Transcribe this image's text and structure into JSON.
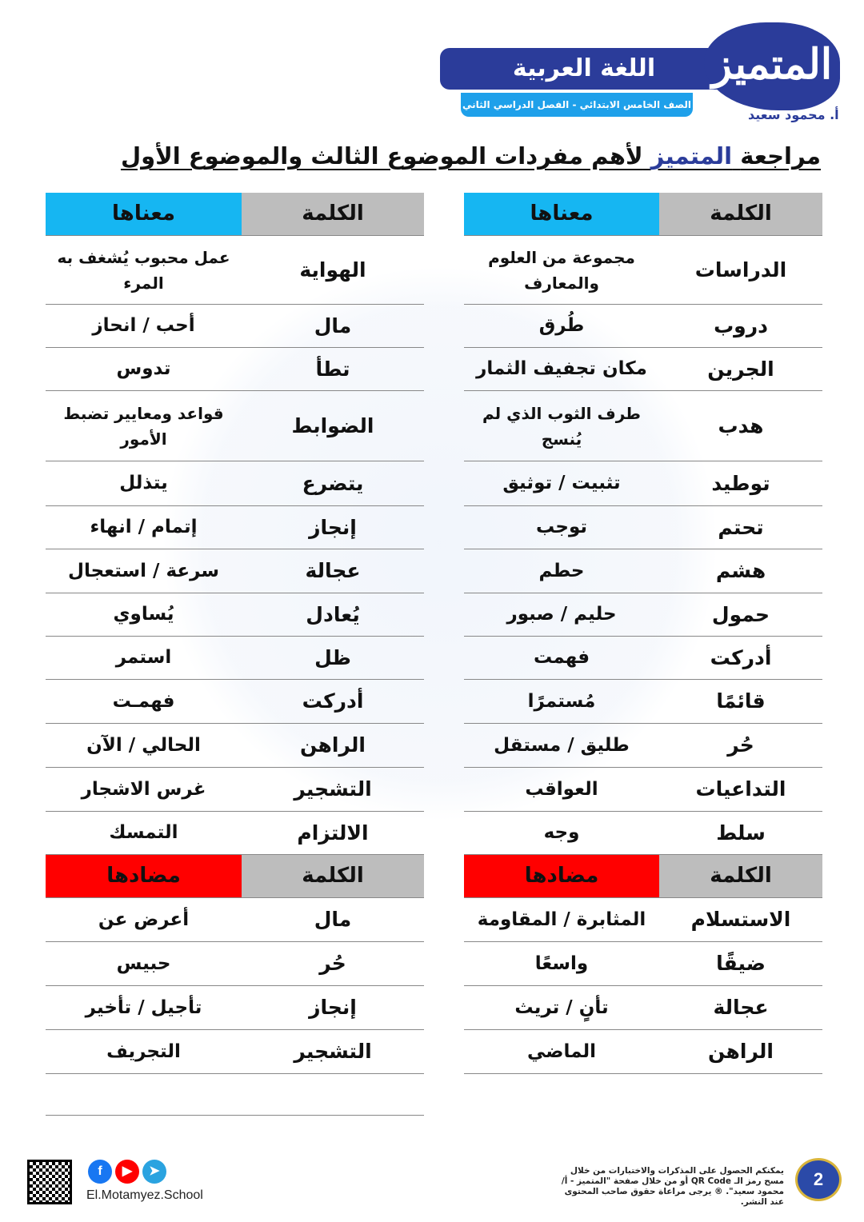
{
  "header": {
    "subject": "اللغة العربية",
    "grade": "الصف الخامس الابتدائي - الفصل الدراسي الثاني",
    "logo": "المتميز",
    "author": "أ. محمود سعيد"
  },
  "title": {
    "part1": "مراجعة",
    "highlight": "المتميز",
    "part2": "لأهم مفردات الموضوع الثالث والموضوع الأول"
  },
  "colors": {
    "brand": "#2b3c9a",
    "meaning_header": "#16b6f2",
    "antonym_header": "#ff0000",
    "word_header": "#bdbdbd"
  },
  "right_table": {
    "word_header": "الكلمة",
    "meaning_header": "معناها",
    "rows": [
      {
        "word": "الدراسات",
        "meaning": "مجموعة من العلوم والمعارف"
      },
      {
        "word": "دروب",
        "meaning": "طُرق"
      },
      {
        "word": "الجرين",
        "meaning": "مكان تجفيف الثمار"
      },
      {
        "word": "هدب",
        "meaning": "طرف الثوب الذي لم يُنسج"
      },
      {
        "word": "توطيد",
        "meaning": "تثبيت / توثيق"
      },
      {
        "word": "تحتم",
        "meaning": "توجب"
      },
      {
        "word": "هشم",
        "meaning": "حطم"
      },
      {
        "word": "حمول",
        "meaning": "حليم / صبور"
      },
      {
        "word": "أدركت",
        "meaning": "فهمت"
      },
      {
        "word": "قائمًا",
        "meaning": "مُستمرًا"
      },
      {
        "word": "حُر",
        "meaning": "طليق / مستقل"
      },
      {
        "word": "التداعيات",
        "meaning": "العواقب"
      },
      {
        "word": "سلط",
        "meaning": "وجه"
      }
    ],
    "antonym_header": "مضادها",
    "antonyms": [
      {
        "word": "الاستسلام",
        "antonym": "المثابرة / المقاومة"
      },
      {
        "word": "ضيقًا",
        "antonym": "واسعًا"
      },
      {
        "word": "عجالة",
        "antonym": "تأنٍ / تريث"
      },
      {
        "word": "الراهن",
        "antonym": "الماضي"
      }
    ]
  },
  "left_table": {
    "word_header": "الكلمة",
    "meaning_header": "معناها",
    "rows": [
      {
        "word": "الهواية",
        "meaning": "عمل محبوب يُشغف به المرء"
      },
      {
        "word": "مال",
        "meaning": "أحب / انحاز"
      },
      {
        "word": "تطأ",
        "meaning": "تدوس"
      },
      {
        "word": "الضوابط",
        "meaning": "قواعد ومعايير تضبط الأمور"
      },
      {
        "word": "يتضرع",
        "meaning": "يتذلل"
      },
      {
        "word": "إنجاز",
        "meaning": "إتمام / انهاء"
      },
      {
        "word": "عجالة",
        "meaning": "سرعة / استعجال"
      },
      {
        "word": "يُعادل",
        "meaning": "يُساوي"
      },
      {
        "word": "ظل",
        "meaning": "استمر"
      },
      {
        "word": "أدركت",
        "meaning": "فهمـت"
      },
      {
        "word": "الراهن",
        "meaning": "الحالي / الآن"
      },
      {
        "word": "التشجير",
        "meaning": "غرس الاشجار"
      },
      {
        "word": "الالتزام",
        "meaning": "التمسك"
      }
    ],
    "antonym_header": "مضادها",
    "antonyms": [
      {
        "word": "مال",
        "antonym": "أعرض عن"
      },
      {
        "word": "حُر",
        "antonym": "حبيس"
      },
      {
        "word": "إنجاز",
        "antonym": "تأجيل / تأخير"
      },
      {
        "word": "التشجير",
        "antonym": "التجريف"
      }
    ]
  },
  "footer": {
    "note": "يمكنكم الحصول على المذكرات والاختبارات من خلال مسح رمز الـ QR Code أو من خلال صفحة \"المتميز - أ/ محمود سعيد\". ® يرجى مراعاة حقوق صاحب المحتوى عند النشر.",
    "page": "2",
    "site": "El.Motamyez.School",
    "social_icons": [
      "facebook-icon",
      "youtube-icon",
      "telegram-icon"
    ]
  }
}
